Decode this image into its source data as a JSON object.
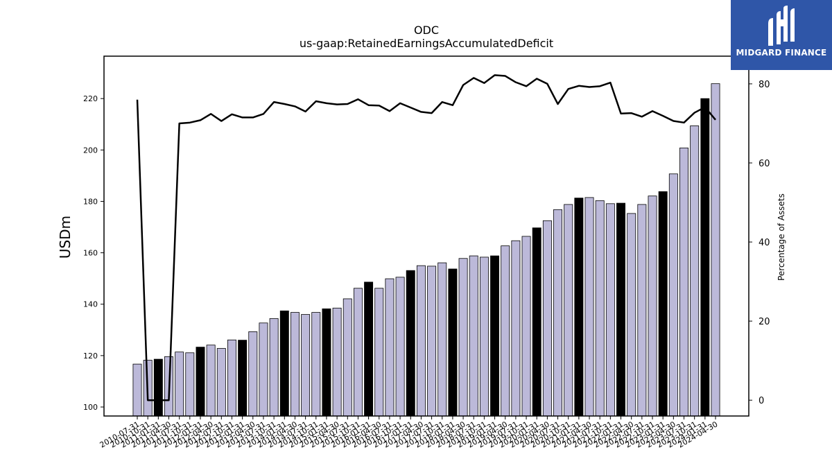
{
  "logo": {
    "text": "MIDGARD FINANCE",
    "icon": "midgard-m-logo-icon",
    "background": "#2f56a8"
  },
  "chart_data": {
    "type": "bar",
    "title": "ODC",
    "subtitle": "us-gaap:RetainedEarningsAccumulatedDeficit",
    "ylabel": "USDm",
    "y2label": "Percentage of Assets",
    "ylim": [
      96.5,
      236.5
    ],
    "y2lim": [
      -4,
      87
    ],
    "yticks": [
      100,
      120,
      140,
      160,
      180,
      200,
      220
    ],
    "y2ticks": [
      0,
      20,
      40,
      60,
      80
    ],
    "grid": false,
    "colors": {
      "bar": "#bcb9d9",
      "bar_highlight": "#000000",
      "line": "#000000"
    },
    "categories": [
      "2010-07-31",
      "2010-10-31",
      "2011-01-31",
      "2011-04-30",
      "2011-07-31",
      "2011-10-31",
      "2012-01-31",
      "2012-04-30",
      "2012-07-31",
      "2012-10-31",
      "2013-01-31",
      "2013-04-30",
      "2013-07-31",
      "2013-10-31",
      "2014-01-31",
      "2014-04-30",
      "2014-07-31",
      "2014-10-31",
      "2015-01-31",
      "2015-04-30",
      "2015-07-31",
      "2015-10-31",
      "2016-01-31",
      "2016-04-30",
      "2016-07-31",
      "2016-10-31",
      "2017-01-31",
      "2017-04-30",
      "2017-07-31",
      "2017-10-31",
      "2018-01-31",
      "2018-04-30",
      "2018-07-31",
      "2018-10-31",
      "2019-01-31",
      "2019-04-30",
      "2019-07-31",
      "2019-10-31",
      "2020-01-31",
      "2020-04-30",
      "2020-07-31",
      "2020-10-31",
      "2021-01-31",
      "2021-04-30",
      "2021-07-31",
      "2021-10-31",
      "2022-01-31",
      "2022-04-30",
      "2022-07-31",
      "2022-10-31",
      "2023-01-31",
      "2023-04-30",
      "2023-07-31",
      "2023-10-31",
      "2024-01-31",
      "2024-04-30"
    ],
    "series": [
      {
        "values": [
          116.7,
          118.2,
          118.6,
          119.6,
          121.4,
          121.1,
          123.3,
          124.1,
          122.8,
          126.1,
          126.0,
          129.3,
          132.7,
          134.4,
          137.4,
          136.8,
          136.0,
          136.8,
          138.2,
          138.5,
          142.1,
          146.2,
          148.6,
          146.2,
          149.9,
          150.5,
          153.1,
          155.0,
          154.8,
          156.1,
          153.7,
          157.8,
          158.8,
          158.3,
          158.8,
          162.7,
          164.7,
          166.4,
          169.7,
          172.5,
          176.8,
          178.8,
          181.3,
          181.5,
          180.3,
          179.1,
          179.3,
          175.3,
          178.8,
          182.1,
          183.8,
          190.7,
          200.8,
          209.4,
          220.0,
          225.8
        ],
        "highlighted": [
          2,
          6,
          10,
          14,
          18,
          22,
          26,
          30,
          34,
          38,
          42,
          46,
          50,
          54
        ]
      },
      {
        "axis": "right",
        "values": [
          76.0,
          0.0,
          0.0,
          0.0,
          70.0,
          70.2,
          70.8,
          72.4,
          70.6,
          72.3,
          71.5,
          71.5,
          72.4,
          75.4,
          74.9,
          74.3,
          73.0,
          75.6,
          75.1,
          74.8,
          74.9,
          76.1,
          74.6,
          74.5,
          73.1,
          75.1,
          74.0,
          72.9,
          72.6,
          75.4,
          74.6,
          79.7,
          81.5,
          80.2,
          82.2,
          82.0,
          80.4,
          79.4,
          81.3,
          80.0,
          74.9,
          78.7,
          79.5,
          79.2,
          79.4,
          80.3,
          72.5,
          72.6,
          71.7,
          73.1,
          71.9,
          70.6,
          70.2,
          72.7,
          74.1,
          70.9
        ]
      }
    ]
  }
}
